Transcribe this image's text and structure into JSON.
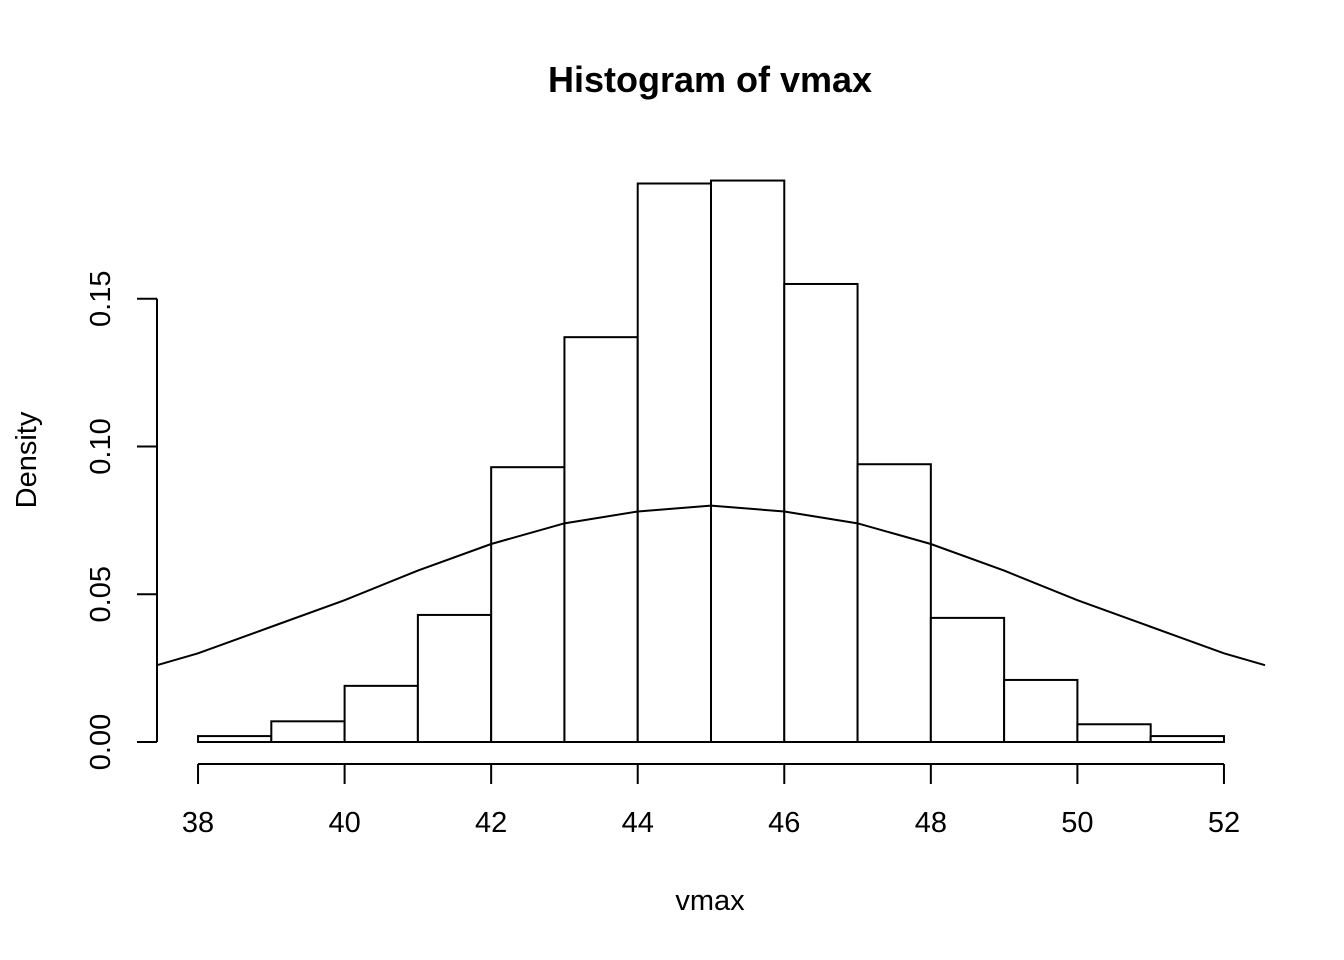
{
  "chart_data": {
    "type": "bar",
    "title": "Histogram of vmax",
    "xlabel": "vmax",
    "ylabel": "Density",
    "xlim": [
      37.44,
      52.56
    ],
    "ylim": [
      0,
      0.19
    ],
    "x_ticks": [
      38,
      40,
      42,
      44,
      46,
      48,
      50,
      52
    ],
    "x_tick_labels": [
      "38",
      "40",
      "42",
      "44",
      "46",
      "48",
      "50",
      "52"
    ],
    "y_ticks": [
      0,
      0.05,
      0.1,
      0.15
    ],
    "y_tick_labels": [
      "0.00",
      "0.05",
      "0.10",
      "0.15"
    ],
    "grid": false,
    "bins": [
      {
        "from": 38,
        "to": 39,
        "density": 0.002
      },
      {
        "from": 39,
        "to": 40,
        "density": 0.007
      },
      {
        "from": 40,
        "to": 41,
        "density": 0.019
      },
      {
        "from": 41,
        "to": 42,
        "density": 0.043
      },
      {
        "from": 42,
        "to": 43,
        "density": 0.093
      },
      {
        "from": 43,
        "to": 44,
        "density": 0.137
      },
      {
        "from": 44,
        "to": 45,
        "density": 0.189
      },
      {
        "from": 45,
        "to": 46,
        "density": 0.19
      },
      {
        "from": 46,
        "to": 47,
        "density": 0.155
      },
      {
        "from": 47,
        "to": 48,
        "density": 0.094
      },
      {
        "from": 48,
        "to": 49,
        "density": 0.042
      },
      {
        "from": 49,
        "to": 50,
        "density": 0.021
      },
      {
        "from": 50,
        "to": 51,
        "density": 0.006
      },
      {
        "from": 51,
        "to": 52,
        "density": 0.002
      }
    ],
    "series": [
      {
        "type": "line",
        "x": [
          37.44,
          38,
          39,
          40,
          41,
          42,
          43,
          44,
          45,
          46,
          47,
          48,
          49,
          50,
          51,
          52,
          52.56
        ],
        "values": [
          0.026,
          0.03,
          0.039,
          0.048,
          0.058,
          0.067,
          0.074,
          0.078,
          0.08,
          0.078,
          0.074,
          0.067,
          0.058,
          0.048,
          0.039,
          0.03,
          0.026
        ]
      }
    ]
  }
}
